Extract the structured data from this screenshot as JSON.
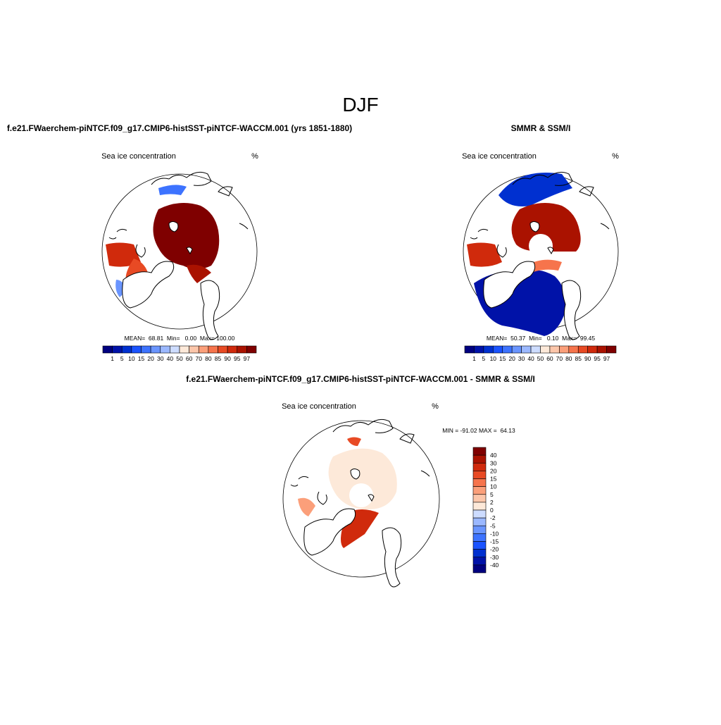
{
  "title": "DJF",
  "panels": [
    {
      "title": "f.e21.FWaerchem-piNTCF.f09_g17.CMIP6-histSST-piNTCF-WACCM.001 (yrs 1851-1880)",
      "left_label": "Sea ice concentration",
      "right_label": "%",
      "stats": "MEAN=  68.81  Min=   0.00  Max= 100.00",
      "colorbar": {
        "colors": [
          "#00007f",
          "#0012a8",
          "#0030d0",
          "#1a53ff",
          "#3d73ff",
          "#6a95ff",
          "#9bb8ff",
          "#cddcff",
          "#fde9d9",
          "#fcc6aa",
          "#fb9f7a",
          "#f6744c",
          "#e84a24",
          "#d02a0c",
          "#aa1200",
          "#7f0000"
        ],
        "labels": [
          1,
          5,
          10,
          15,
          20,
          30,
          40,
          50,
          60,
          70,
          80,
          85,
          90,
          95,
          97
        ]
      }
    },
    {
      "title": "SMMR & SSM/I",
      "left_label": "Sea ice concentration",
      "right_label": "%",
      "stats": "MEAN=  50.37  Min=   0.10  Max=  99.45",
      "colorbar": {
        "colors": [
          "#00007f",
          "#0012a8",
          "#0030d0",
          "#1a53ff",
          "#3d73ff",
          "#6a95ff",
          "#9bb8ff",
          "#cddcff",
          "#fde9d9",
          "#fcc6aa",
          "#fb9f7a",
          "#f6744c",
          "#e84a24",
          "#d02a0c",
          "#aa1200",
          "#7f0000"
        ],
        "labels": [
          1,
          5,
          10,
          15,
          20,
          30,
          40,
          50,
          60,
          70,
          80,
          85,
          90,
          95,
          97
        ]
      }
    },
    {
      "title": "f.e21.FWaerchem-piNTCF.f09_g17.CMIP6-histSST-piNTCF-WACCM.001 - SMMR & SSM/I",
      "left_label": "Sea ice concentration",
      "right_label": "%",
      "stats": "MIN = -91.02 MAX =  64.13",
      "colorbar": {
        "colors": [
          "#7f0000",
          "#aa1200",
          "#d02a0c",
          "#e84a24",
          "#f6744c",
          "#fb9f7a",
          "#fcc6aa",
          "#fde9d9",
          "#cddcff",
          "#9bb8ff",
          "#6a95ff",
          "#3d73ff",
          "#1a53ff",
          "#0030d0",
          "#0012a8",
          "#00007f"
        ],
        "labels": [
          40,
          30,
          20,
          15,
          10,
          5,
          2,
          0,
          -2,
          -5,
          -10,
          -15,
          -20,
          -30,
          -40
        ]
      }
    }
  ]
}
